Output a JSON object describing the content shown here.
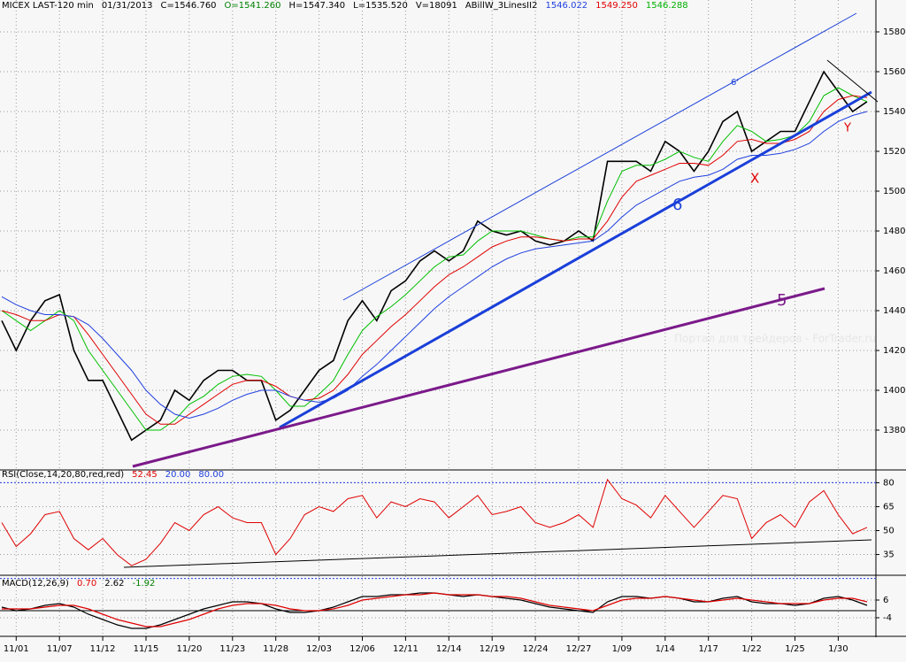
{
  "chart_data": [
    {
      "type": "line",
      "header": [
        {
          "text": "MICEX LAST-120 min",
          "color": "#000000"
        },
        {
          "text": "01/31/2013",
          "color": "#000000"
        },
        {
          "text": "C=1546.760",
          "color": "#000000"
        },
        {
          "text": "O=1541.260",
          "color": "#008000"
        },
        {
          "text": "H=1547.340",
          "color": "#000000"
        },
        {
          "text": "L=1535.520",
          "color": "#000000"
        },
        {
          "text": "V=18091",
          "color": "#000000"
        },
        {
          "text": "ABillW_3LinesII2",
          "color": "#000000"
        },
        {
          "text": "1546.022",
          "color": "#1f3fdf"
        },
        {
          "text": "1549.250",
          "color": "#e00000"
        },
        {
          "text": "1546.288",
          "color": "#00b000"
        }
      ],
      "watermark": "Портал для трейдеров - ForTrader.ru",
      "annotations": [
        "6'",
        "6",
        "5",
        "X",
        "Y"
      ],
      "categories": [
        null,
        "11/01",
        null,
        null,
        "11/07",
        null,
        null,
        "11/12",
        null,
        null,
        "11/15",
        null,
        null,
        "11/20",
        null,
        null,
        "11/23",
        null,
        null,
        "11/28",
        null,
        null,
        "12/03",
        null,
        null,
        "12/06",
        null,
        null,
        "12/11",
        null,
        null,
        "12/14",
        null,
        null,
        "12/19",
        null,
        null,
        "12/24",
        null,
        null,
        "12/27",
        null,
        null,
        "1/09",
        null,
        null,
        "1/14",
        null,
        null,
        "1/17",
        null,
        null,
        "1/22",
        null,
        null,
        "1/25",
        null,
        null,
        "1/30",
        null,
        null
      ],
      "ylim": [
        1360,
        1596
      ],
      "yticks": [
        1380,
        1400,
        1420,
        1440,
        1460,
        1480,
        1500,
        1520,
        1540,
        1560,
        1580
      ],
      "grid": true,
      "series": [
        {
          "color": "#000000",
          "width": 1.6,
          "values": [
            1435,
            1420,
            1435,
            1445,
            1448,
            1420,
            1405,
            1405,
            1390,
            1375,
            1380,
            1385,
            1400,
            1395,
            1405,
            1410,
            1410,
            1405,
            1405,
            1385,
            1390,
            1400,
            1410,
            1415,
            1435,
            1445,
            1435,
            1450,
            1455,
            1465,
            1470,
            1465,
            1470,
            1485,
            1480,
            1478,
            1480,
            1475,
            1473,
            1475,
            1480,
            1475,
            1515,
            1515,
            1515,
            1510,
            1525,
            1520,
            1510,
            1520,
            1535,
            1540,
            1520,
            1525,
            1530,
            1530,
            1545,
            1560,
            1550,
            1540,
            1545
          ]
        },
        {
          "color": "#00c000",
          "width": 1,
          "values": [
            1440,
            1435,
            1430,
            1435,
            1440,
            1435,
            1420,
            1410,
            1400,
            1390,
            1380,
            1380,
            1385,
            1393,
            1397,
            1403,
            1407,
            1408,
            1407,
            1400,
            1392,
            1392,
            1398,
            1405,
            1418,
            1430,
            1437,
            1442,
            1448,
            1455,
            1462,
            1467,
            1468,
            1475,
            1480,
            1480,
            1480,
            1478,
            1476,
            1475,
            1477,
            1477,
            1495,
            1510,
            1513,
            1513,
            1516,
            1520,
            1517,
            1515,
            1525,
            1533,
            1530,
            1525,
            1526,
            1528,
            1535,
            1548,
            1552,
            1548,
            1545
          ]
        },
        {
          "color": "#e00000",
          "width": 1,
          "values": [
            1440,
            1438,
            1435,
            1435,
            1438,
            1437,
            1428,
            1418,
            1408,
            1398,
            1388,
            1383,
            1383,
            1388,
            1393,
            1398,
            1403,
            1405,
            1405,
            1402,
            1397,
            1395,
            1396,
            1400,
            1408,
            1418,
            1425,
            1432,
            1438,
            1445,
            1452,
            1458,
            1462,
            1467,
            1472,
            1475,
            1477,
            1477,
            1476,
            1475,
            1476,
            1476,
            1485,
            1497,
            1505,
            1508,
            1511,
            1514,
            1514,
            1513,
            1518,
            1525,
            1526,
            1524,
            1524,
            1526,
            1530,
            1540,
            1546,
            1548,
            1547
          ]
        },
        {
          "color": "#1f3fdf",
          "width": 1,
          "values": [
            1447,
            1443,
            1440,
            1438,
            1438,
            1437,
            1433,
            1426,
            1418,
            1410,
            1400,
            1393,
            1388,
            1386,
            1388,
            1391,
            1395,
            1398,
            1400,
            1400,
            1397,
            1395,
            1394,
            1396,
            1400,
            1407,
            1413,
            1420,
            1427,
            1434,
            1441,
            1447,
            1452,
            1457,
            1462,
            1466,
            1469,
            1471,
            1472,
            1473,
            1474,
            1475,
            1480,
            1487,
            1493,
            1497,
            1501,
            1505,
            1507,
            1508,
            1511,
            1516,
            1518,
            1518,
            1519,
            1521,
            1524,
            1530,
            1535,
            1538,
            1540
          ]
        }
      ]
    },
    {
      "type": "line",
      "header": [
        {
          "text": "RSI(Close,14,20,80,red,red)",
          "color": "#000000"
        },
        {
          "text": "52.45",
          "color": "#e00000"
        }
      ],
      "levels": [
        {
          "value": 20,
          "label": "20.00"
        },
        {
          "value": 80,
          "label": "80.00"
        }
      ],
      "level_color": "#1f3fdf",
      "ylim": [
        22,
        88
      ],
      "yticks": [
        35,
        50,
        65,
        80
      ],
      "grid": true,
      "series": [
        {
          "color": "#e00000",
          "width": 1,
          "values": [
            55,
            40,
            48,
            60,
            62,
            45,
            38,
            45,
            35,
            28,
            32,
            42,
            55,
            50,
            60,
            65,
            58,
            55,
            55,
            35,
            45,
            60,
            65,
            62,
            70,
            72,
            58,
            68,
            65,
            70,
            68,
            58,
            65,
            72,
            60,
            62,
            65,
            55,
            52,
            55,
            60,
            52,
            82,
            70,
            66,
            58,
            72,
            62,
            52,
            62,
            72,
            70,
            45,
            55,
            60,
            52,
            68,
            75,
            60,
            48,
            52
          ]
        }
      ]
    },
    {
      "type": "line",
      "header": [
        {
          "text": "MACD(12,26,9)",
          "color": "#000000"
        },
        {
          "text": "0.70",
          "color": "#e00000"
        },
        {
          "text": "2.62",
          "color": "#000000"
        },
        {
          "text": "-1.92",
          "color": "#008000"
        }
      ],
      "ylim": [
        -14,
        19.5
      ],
      "yticks": [
        -4,
        6
      ],
      "grid": true,
      "series": [
        {
          "color": "#000000",
          "width": 1.2,
          "values": [
            2,
            0,
            1,
            3,
            4,
            2,
            -2,
            -5,
            -8,
            -10,
            -10,
            -8,
            -5,
            -2,
            1,
            3,
            5,
            5,
            4,
            1,
            -1,
            -1,
            0,
            2,
            5,
            8,
            8,
            9,
            9,
            10,
            10,
            9,
            8,
            9,
            8,
            7,
            6,
            4,
            2,
            1,
            0,
            -1,
            5,
            8,
            8,
            7,
            8,
            7,
            5,
            5,
            7,
            8,
            5,
            4,
            4,
            3,
            4,
            7,
            8,
            6,
            3
          ]
        },
        {
          "color": "#e00000",
          "width": 1.2,
          "values": [
            1,
            1,
            1,
            2,
            3,
            3,
            1,
            -2,
            -5,
            -7,
            -9,
            -9,
            -7,
            -5,
            -2,
            1,
            3,
            4,
            4,
            3,
            1,
            0,
            0,
            1,
            3,
            6,
            7,
            8,
            9,
            9,
            10,
            9,
            9,
            9,
            8,
            8,
            7,
            5,
            3,
            2,
            1,
            0,
            3,
            6,
            7,
            7,
            8,
            7,
            6,
            5,
            6,
            7,
            6,
            5,
            4,
            4,
            4,
            6,
            7,
            7,
            5
          ]
        }
      ]
    }
  ]
}
